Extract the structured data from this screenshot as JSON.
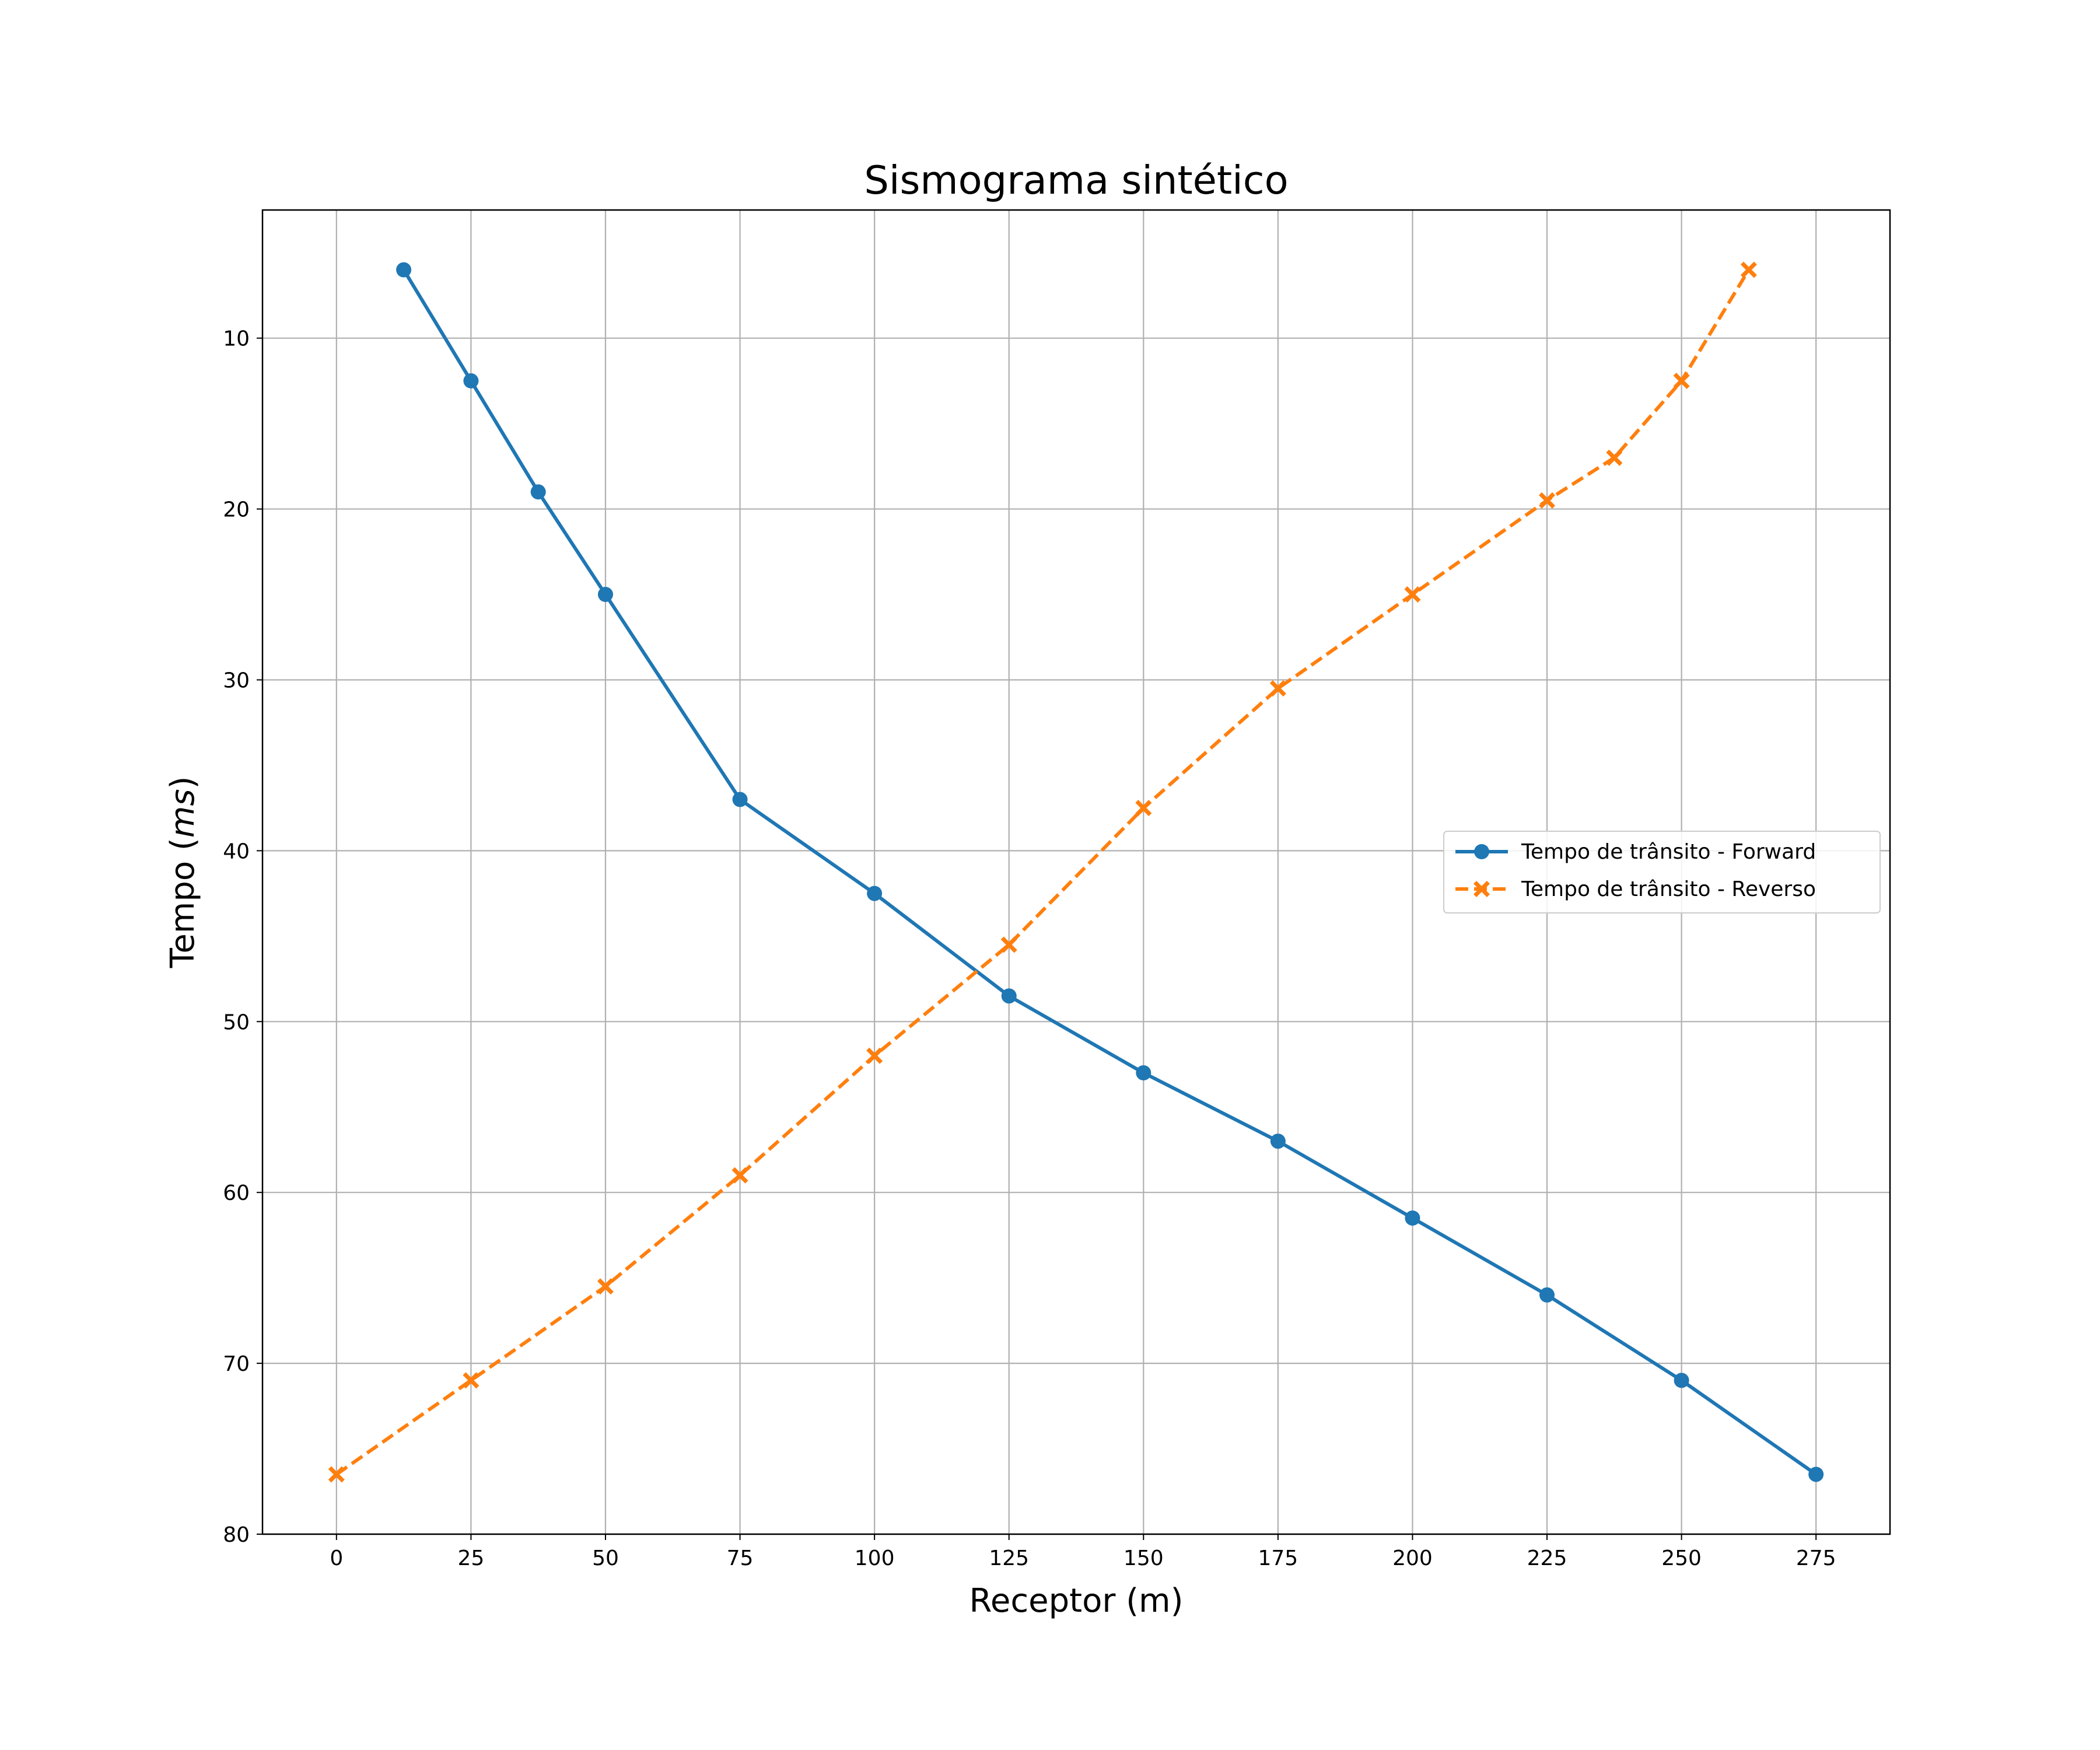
{
  "chart_data": {
    "type": "line",
    "title": "Sismograma sintético",
    "xlabel": "Receptor (m)",
    "ylabel_prefix": "Tempo (",
    "ylabel_unit": "ms",
    "ylabel_suffix": ")",
    "xlim": [
      -13.75,
      288.75
    ],
    "ylim": [
      80,
      2.5
    ],
    "y_inverted": true,
    "grid": true,
    "legend_position": "center-right",
    "x_ticks": [
      0,
      25,
      50,
      75,
      100,
      125,
      150,
      175,
      200,
      225,
      250,
      275
    ],
    "y_ticks": [
      10,
      20,
      30,
      40,
      50,
      60,
      70,
      80
    ],
    "series": [
      {
        "name": "Tempo de trânsito - Forward",
        "color": "#1f77b4",
        "line_style": "solid",
        "marker": "circle",
        "x": [
          12.5,
          25,
          37.5,
          50,
          75,
          100,
          125,
          150,
          175,
          200,
          225,
          250,
          275
        ],
        "y": [
          6,
          12.5,
          19,
          25,
          37,
          42.5,
          48.5,
          53,
          57,
          61.5,
          66,
          71,
          76.5
        ]
      },
      {
        "name": "Tempo de trânsito - Reverso",
        "color": "#ff7f0e",
        "line_style": "dashed",
        "marker": "x-filled",
        "x": [
          0,
          25,
          50,
          75,
          100,
          125,
          150,
          175,
          200,
          225,
          237.5,
          250,
          262.5
        ],
        "y": [
          76.5,
          71,
          65.5,
          59,
          52,
          45.5,
          37.5,
          30.5,
          25,
          19.5,
          17,
          12.5,
          6
        ]
      }
    ]
  }
}
